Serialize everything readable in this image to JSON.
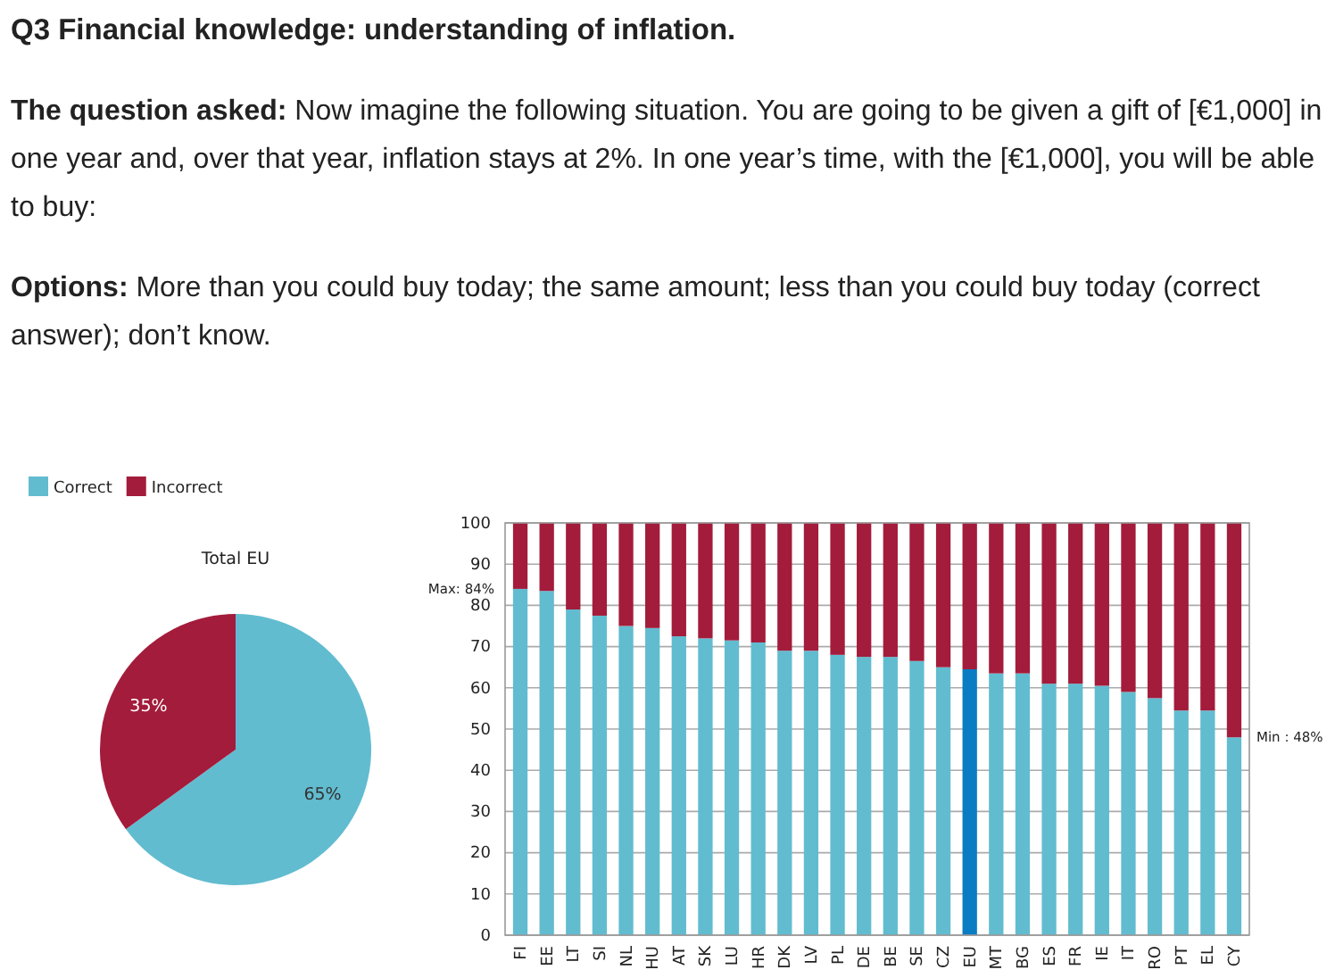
{
  "chart_data": [
    {
      "type": "other",
      "title": "Q3 Financial knowledge: understanding of inflation.",
      "annotations": [
        "The question asked:",
        "Now imagine the following situation. You are going to be given a gift of [€1,000] in one year and, over that year, inflation stays at 2%. In one year’s time, with the [€1,000], you will be able to buy:",
        "Options:",
        "More than you could buy today; the same amount; less than you could buy today (correct answer); don’t know."
      ]
    },
    {
      "type": "pie",
      "title": "Total EU",
      "categories": [
        "Correct",
        "Incorrect"
      ],
      "values": [
        65,
        35
      ],
      "colors": [
        "#62bcd0",
        "#a31c3b"
      ],
      "value_labels": [
        "65%",
        "35%"
      ],
      "legend": "top left"
    },
    {
      "type": "bar",
      "stacked": true,
      "categories": [
        "FI",
        "EE",
        "LT",
        "SI",
        "NL",
        "HU",
        "AT",
        "SK",
        "LU",
        "HR",
        "DK",
        "LV",
        "PL",
        "DE",
        "BE",
        "SE",
        "CZ",
        "EU",
        "MT",
        "BG",
        "ES",
        "FR",
        "IE",
        "IT",
        "RO",
        "PT",
        "EL",
        "CY"
      ],
      "series": [
        {
          "colors": [
            "#62bcd0",
            "#62bcd0",
            "#62bcd0",
            "#62bcd0",
            "#62bcd0",
            "#62bcd0",
            "#62bcd0",
            "#62bcd0",
            "#62bcd0",
            "#62bcd0",
            "#62bcd0",
            "#62bcd0",
            "#62bcd0",
            "#62bcd0",
            "#62bcd0",
            "#62bcd0",
            "#62bcd0",
            "#0a7cc4",
            "#62bcd0",
            "#62bcd0",
            "#62bcd0",
            "#62bcd0",
            "#62bcd0",
            "#62bcd0",
            "#62bcd0",
            "#62bcd0",
            "#62bcd0",
            "#62bcd0"
          ],
          "values": [
            84,
            83.5,
            79,
            77.5,
            75,
            74.5,
            72.5,
            72,
            71.5,
            71,
            69,
            69,
            68,
            67.5,
            67.5,
            66.5,
            65,
            64.5,
            63.5,
            63.5,
            61,
            61,
            60.5,
            59,
            57.5,
            54.5,
            54.5,
            48
          ]
        },
        {
          "color": "#a31c3b",
          "values": [
            16,
            16.5,
            21,
            22.5,
            25,
            25.5,
            27.5,
            28,
            28.5,
            29,
            31,
            31,
            32,
            32.5,
            32.5,
            33.5,
            35,
            35.5,
            36.5,
            36.5,
            39,
            39,
            39.5,
            41,
            42.5,
            45.5,
            45.5,
            52
          ]
        }
      ],
      "ylim": [
        0,
        100
      ],
      "yticks": [
        0,
        10,
        20,
        30,
        40,
        50,
        60,
        70,
        80,
        90,
        100
      ],
      "grid": "y",
      "annotations": [
        {
          "text": "Max: 84%",
          "x": "FI",
          "y": 84
        },
        {
          "text": "Min : 48%",
          "x": "CY",
          "y": 48
        }
      ]
    }
  ]
}
